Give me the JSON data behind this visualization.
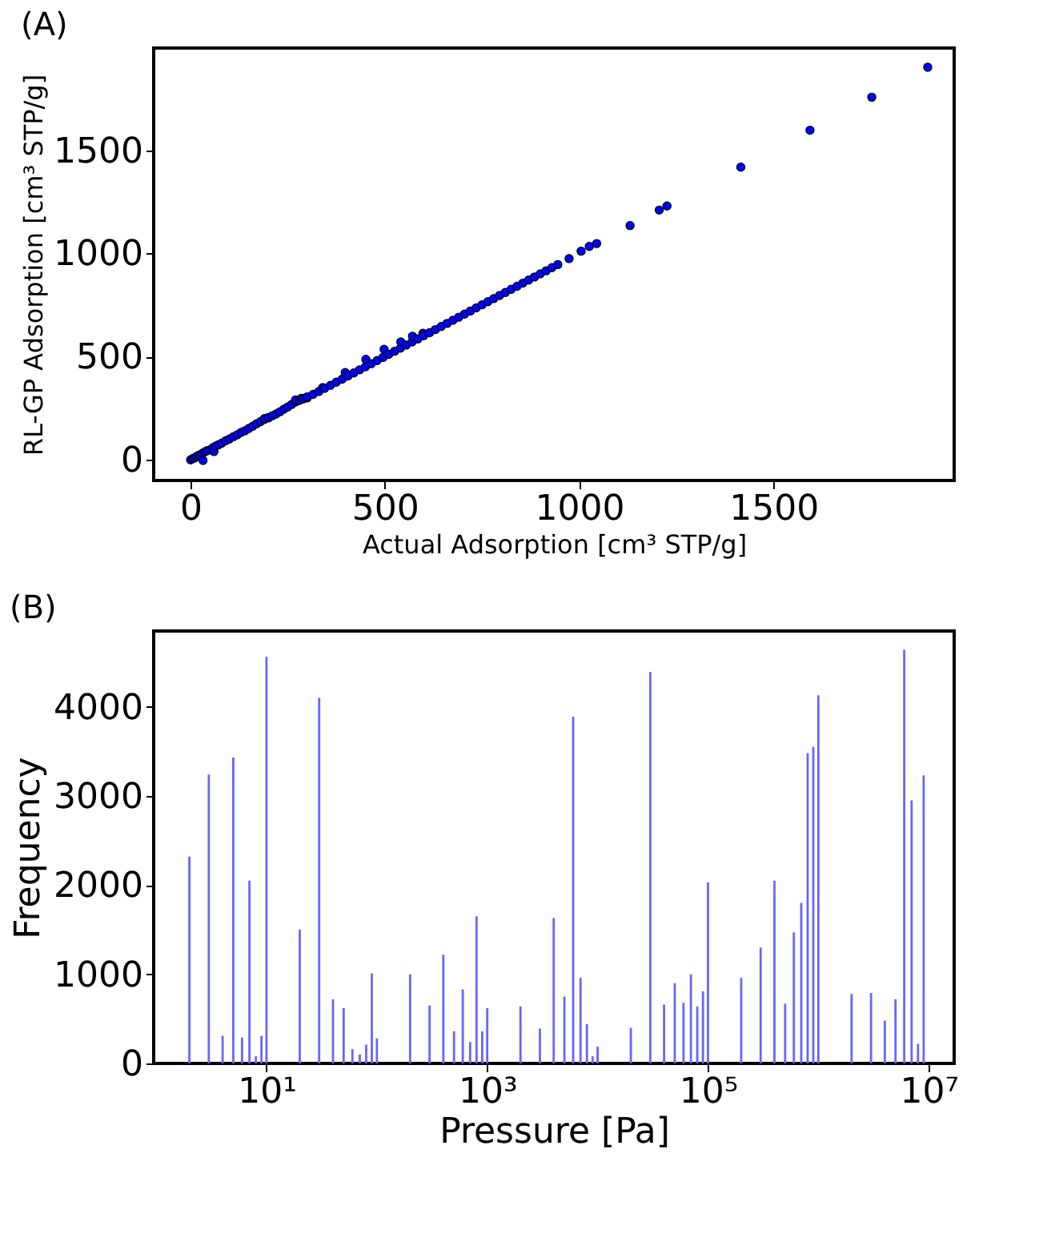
{
  "chart_data": [
    {
      "type": "scatter",
      "title": "(A)",
      "xlabel": "Actual Adsorption [cm³ STP/g]",
      "ylabel": "RL-GP Adsorption [cm³ STP/g]",
      "xlim": [
        -95,
        1965
      ],
      "ylim": [
        -100,
        1995
      ],
      "xticks": [
        0,
        500,
        1000,
        1500
      ],
      "yticks": [
        0,
        500,
        1000,
        1500
      ],
      "grid": false,
      "marker": "circle",
      "series": [
        {
          "color": "#0000ff",
          "x": [
            0,
            5,
            10,
            15,
            20,
            25,
            30,
            32,
            36,
            42,
            50,
            58,
            60,
            65,
            72,
            80,
            90,
            100,
            110,
            120,
            130,
            140,
            150,
            160,
            170,
            180,
            190,
            190,
            200,
            200,
            210,
            220,
            230,
            240,
            250,
            260,
            270,
            270,
            280,
            285,
            290,
            300,
            300,
            315,
            330,
            340,
            345,
            360,
            375,
            390,
            398,
            405,
            420,
            435,
            450,
            451,
            465,
            480,
            495,
            498,
            510,
            525,
            540,
            541,
            555,
            570,
            571,
            585,
            598,
            600,
            615,
            630,
            645,
            660,
            675,
            690,
            705,
            720,
            735,
            750,
            765,
            780,
            795,
            810,
            825,
            840,
            855,
            870,
            885,
            900,
            915,
            930,
            945,
            974,
            1005,
            1026,
            1045,
            1131,
            1206,
            1226,
            1416,
            1594,
            1753,
            1897
          ],
          "values": [
            0,
            6,
            9,
            16,
            21,
            24,
            31,
            -3,
            38,
            44,
            49,
            60,
            40,
            67,
            73,
            81,
            92,
            101,
            112,
            121,
            133,
            141,
            152,
            163,
            175,
            185,
            196,
            200,
            203,
            205,
            213,
            222,
            233,
            245,
            256,
            268,
            280,
            290,
            288,
            298,
            295,
            300,
            305,
            317,
            331,
            350,
            346,
            361,
            376,
            391,
            423,
            406,
            421,
            436,
            451,
            487,
            466,
            481,
            496,
            535,
            511,
            526,
            541,
            571,
            556,
            571,
            599,
            586,
            613,
            601,
            616,
            631,
            646,
            661,
            676,
            691,
            706,
            721,
            736,
            751,
            766,
            781,
            796,
            811,
            826,
            841,
            856,
            871,
            886,
            901,
            916,
            931,
            946,
            975,
            1011,
            1034,
            1048,
            1135,
            1210,
            1230,
            1418,
            1597,
            1757,
            1902
          ]
        }
      ]
    },
    {
      "type": "bar",
      "title": "(B)",
      "xlabel": "Pressure [Pa]",
      "ylabel": "Frequency",
      "log": "x",
      "xlim": [
        0.95,
        17000000
      ],
      "ylim": [
        0,
        4850
      ],
      "xticks": [
        {
          "value": 10,
          "label": "10¹"
        },
        {
          "value": 1000,
          "label": "10³"
        },
        {
          "value": 100000,
          "label": "10⁵"
        },
        {
          "value": 10000000,
          "label": "10⁷"
        }
      ],
      "yticks": [
        0,
        1000,
        2000,
        3000,
        4000
      ],
      "grid": false,
      "color": "#6666ff",
      "x": [
        2,
        3,
        4,
        5,
        6,
        7,
        8,
        9,
        10,
        20,
        30,
        40,
        50,
        60,
        70,
        80,
        90,
        100,
        200,
        300,
        400,
        500,
        600,
        700,
        800,
        900,
        1000,
        2000,
        3000,
        4000,
        5000,
        6000,
        7000,
        8000,
        9000,
        10000,
        20000,
        30000,
        40000,
        50000,
        60000,
        70000,
        80000,
        90000,
        100000,
        200000,
        300000,
        400000,
        500000,
        600000,
        700000,
        800000,
        900000,
        1000000,
        2000000,
        3000000,
        4000000,
        5000000,
        6000000,
        7000000,
        8000000,
        9000000
      ],
      "values": [
        2320,
        3240,
        310,
        3430,
        290,
        2050,
        80,
        310,
        4560,
        1500,
        4100,
        720,
        620,
        160,
        100,
        210,
        1010,
        280,
        1000,
        650,
        1220,
        360,
        830,
        240,
        1650,
        360,
        620,
        640,
        390,
        1630,
        750,
        3890,
        960,
        440,
        80,
        190,
        400,
        4390,
        660,
        900,
        680,
        1000,
        640,
        810,
        2030,
        960,
        1300,
        2050,
        670,
        1470,
        1800,
        3480,
        3550,
        4130,
        780,
        790,
        480,
        720,
        4640,
        2950,
        220,
        3230
      ]
    }
  ]
}
